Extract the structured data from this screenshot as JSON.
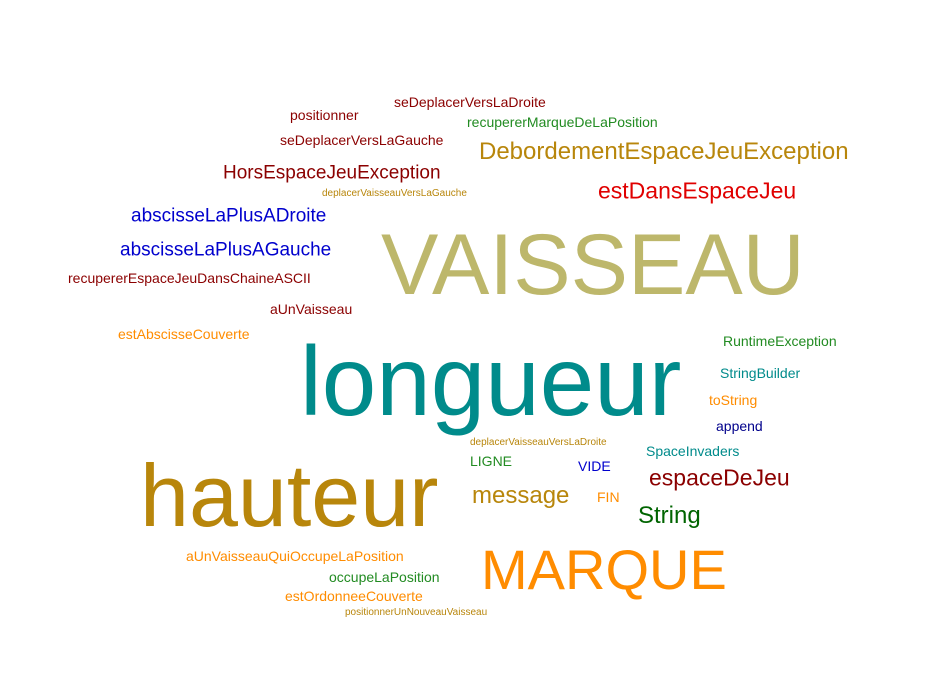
{
  "words": [
    {
      "text": "VAISSEAU",
      "color": "#bdb76b"
    },
    {
      "text": "longueur",
      "color": "#008b8b"
    },
    {
      "text": "hauteur",
      "color": "#b8860b"
    },
    {
      "text": "MARQUE",
      "color": "#ff8c00"
    },
    {
      "text": "DebordementEspaceJeuException",
      "color": "#b8860b"
    },
    {
      "text": "estDansEspaceJeu",
      "color": "#e00000"
    },
    {
      "text": "HorsEspaceJeuException",
      "color": "#8b0000"
    },
    {
      "text": "abscisseLaPlusADroite",
      "color": "#0000cd"
    },
    {
      "text": "abscisseLaPlusAGauche",
      "color": "#0000cd"
    },
    {
      "text": "espaceDeJeu",
      "color": "#8b0000"
    },
    {
      "text": "String",
      "color": "#006400"
    },
    {
      "text": "message",
      "color": "#b8860b"
    },
    {
      "text": "recupererEspaceJeuDansChaineASCII",
      "color": "#8b0000"
    },
    {
      "text": "seDeplacerVersLaDroite",
      "color": "#8b0000"
    },
    {
      "text": "positionner",
      "color": "#8b0000"
    },
    {
      "text": "recupererMarqueDeLaPosition",
      "color": "#228b22"
    },
    {
      "text": "seDeplacerVersLaGauche",
      "color": "#8b0000"
    },
    {
      "text": "deplacerVaisseauVersLaGauche",
      "color": "#b8860b"
    },
    {
      "text": "aUnVaisseau",
      "color": "#8b0000"
    },
    {
      "text": "estAbscisseCouverte",
      "color": "#ff8c00"
    },
    {
      "text": "RuntimeException",
      "color": "#228b22"
    },
    {
      "text": "StringBuilder",
      "color": "#008b8b"
    },
    {
      "text": "toString",
      "color": "#ff8c00"
    },
    {
      "text": "append",
      "color": "#00008b"
    },
    {
      "text": "deplacerVaisseauVersLaDroite",
      "color": "#b8860b"
    },
    {
      "text": "SpaceInvaders",
      "color": "#008b8b"
    },
    {
      "text": "LIGNE",
      "color": "#228b22"
    },
    {
      "text": "VIDE",
      "color": "#0000cd"
    },
    {
      "text": "FIN",
      "color": "#ff8c00"
    },
    {
      "text": "aUnVaisseauQuiOccupeLaPosition",
      "color": "#ff8c00"
    },
    {
      "text": "occupeLaPosition",
      "color": "#228b22"
    },
    {
      "text": "estOrdonneeCouverte",
      "color": "#ff8c00"
    },
    {
      "text": "positionnerUnNouveauVaisseau",
      "color": "#b8860b"
    }
  ]
}
